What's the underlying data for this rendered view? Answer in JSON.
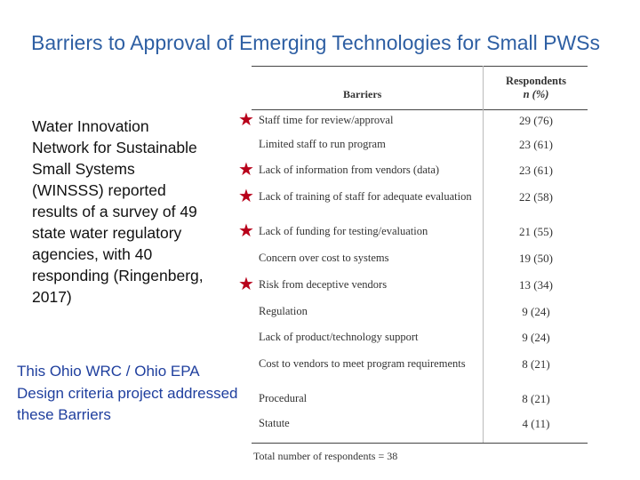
{
  "title": "Barriers to Approval of Emerging Technologies for Small PWSs",
  "body_text": "Water Innovation Network for Sustainable Small Systems (WINSSS) reported results of a survey of 49 state water regulatory agencies, with 40 responding (Ringenberg, 2017)",
  "callout": "This Ohio WRC / Ohio EPA Design criteria project addressed these Barriers",
  "table": {
    "col_barriers": "Barriers",
    "col_respondents": "Respondents",
    "col_respondents_sub": "n (%)",
    "rows": [
      {
        "barrier": "Staff time for review/approval",
        "value": "29 (76)",
        "starred": true
      },
      {
        "barrier": "Limited staff to run program",
        "value": "23 (61)",
        "starred": false
      },
      {
        "barrier": "Lack of information from vendors (data)",
        "value": "23 (61)",
        "starred": true
      },
      {
        "barrier": "Lack of training of staff for adequate evaluation",
        "value": "22 (58)",
        "starred": true
      },
      {
        "barrier": "Lack of funding for testing/evaluation",
        "value": "21 (55)",
        "starred": true
      },
      {
        "barrier": "Concern over cost to systems",
        "value": "19 (50)",
        "starred": false
      },
      {
        "barrier": "Risk from deceptive vendors",
        "value": "13 (34)",
        "starred": true
      },
      {
        "barrier": "Regulation",
        "value": "9 (24)",
        "starred": false
      },
      {
        "barrier": "Lack of product/technology support",
        "value": "9 (24)",
        "starred": false
      },
      {
        "barrier": "Cost to vendors to meet program requirements",
        "value": "8 (21)",
        "starred": false
      },
      {
        "barrier": "Procedural",
        "value": "8 (21)",
        "starred": false
      },
      {
        "barrier": "Statute",
        "value": "4 (11)",
        "starred": false
      }
    ],
    "footnote": "Total number of respondents = 38"
  },
  "icons": {
    "star": "star-icon",
    "star_color": "#b8001a"
  },
  "colors": {
    "title": "#2e5fa3",
    "callout": "#1f3f9e"
  }
}
